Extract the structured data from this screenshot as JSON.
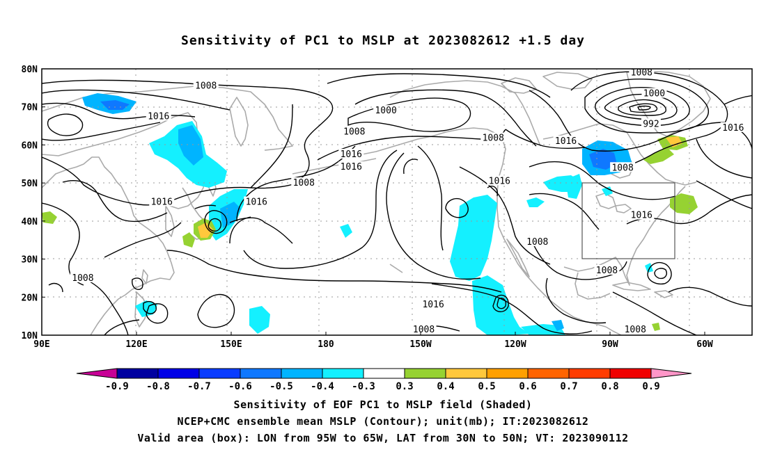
{
  "title": "Sensitivity of PC1 to MSLP at 2023082612 +1.5 day",
  "map": {
    "lat_labels": [
      "80N",
      "70N",
      "60N",
      "50N",
      "40N",
      "30N",
      "20N",
      "10N"
    ],
    "lon_labels": [
      "90E",
      "120E",
      "150E",
      "180",
      "150W",
      "120W",
      "90W",
      "60W"
    ],
    "contour_labels": [
      {
        "text": "1008",
        "lon": 142,
        "lat": 75.5
      },
      {
        "text": "1016",
        "lon": 127,
        "lat": 67.5
      },
      {
        "text": "1000",
        "lon": -161,
        "lat": 69
      },
      {
        "text": "1008",
        "lon": -171,
        "lat": 63.5
      },
      {
        "text": "1008",
        "lon": -127,
        "lat": 61.8
      },
      {
        "text": "1008",
        "lon": -80,
        "lat": 79
      },
      {
        "text": "1000",
        "lon": -76,
        "lat": 73.5
      },
      {
        "text": "992",
        "lon": -77,
        "lat": 65.5
      },
      {
        "text": "1016",
        "lon": -104,
        "lat": 61
      },
      {
        "text": "1008",
        "lon": -86,
        "lat": 54
      },
      {
        "text": "1016",
        "lon": -51,
        "lat": 64.5
      },
      {
        "text": "1016",
        "lon": -172,
        "lat": 57.5
      },
      {
        "text": "1016",
        "lon": -172,
        "lat": 54.2
      },
      {
        "text": "1008",
        "lon": 173,
        "lat": 50
      },
      {
        "text": "1016",
        "lon": -125,
        "lat": 50.5
      },
      {
        "text": "1016",
        "lon": 158,
        "lat": 45
      },
      {
        "text": "1016",
        "lon": 128,
        "lat": 45
      },
      {
        "text": "1016",
        "lon": -80,
        "lat": 41.5
      },
      {
        "text": "1008",
        "lon": -113,
        "lat": 34.5
      },
      {
        "text": "1008",
        "lon": -91,
        "lat": 27
      },
      {
        "text": "1008",
        "lon": 103,
        "lat": 25
      },
      {
        "text": "1016",
        "lon": -146,
        "lat": 18
      },
      {
        "text": "1008",
        "lon": -149,
        "lat": 11.5
      },
      {
        "text": "1008",
        "lon": -82,
        "lat": 11.5
      }
    ]
  },
  "colorbar": {
    "labels": [
      "-0.9",
      "-0.8",
      "-0.7",
      "-0.6",
      "-0.5",
      "-0.4",
      "-0.3",
      "0.3",
      "0.4",
      "0.5",
      "0.6",
      "0.7",
      "0.8",
      "0.9"
    ],
    "colors": [
      "#0000a0",
      "#0000e6",
      "#0a3cff",
      "#0f78ff",
      "#00b4ff",
      "#14f0ff",
      "#ffffff",
      "#96d232",
      "#ffc83c",
      "#ffa000",
      "#ff6400",
      "#ff3c00",
      "#f00000"
    ],
    "low_end_color": "#c80096",
    "high_end_color": "#ff96c8"
  },
  "captions": [
    "Sensitivity of EOF PC1 to MSLP field (Shaded)",
    "NCEP+CMC ensemble mean MSLP (Contour); unit(mb); IT:2023082612",
    "Valid area (box): LON from 95W to 65W, LAT from 30N to 50N; VT: 2023090112"
  ],
  "valid_box": {
    "lon_min": -95,
    "lon_max": -65,
    "lat_min": 30,
    "lat_max": 50
  }
}
